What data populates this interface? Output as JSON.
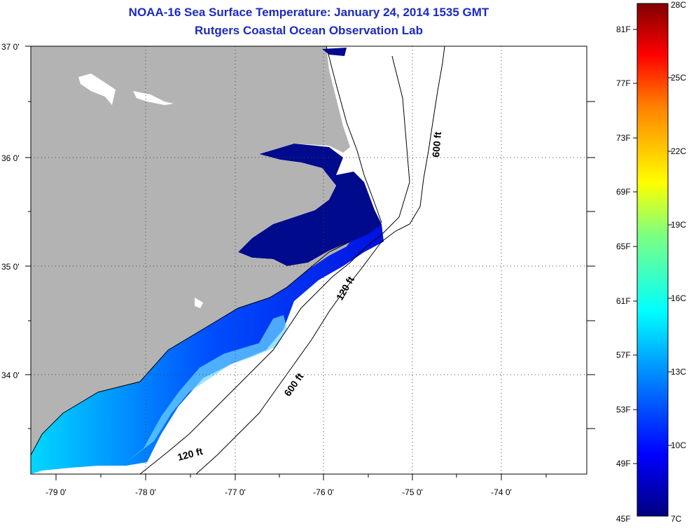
{
  "title": "NOAA-16 Sea Surface Temperature:  January 24, 2014 1535 GMT",
  "subtitle": "Rutgers Coastal Ocean Observation Lab",
  "latitude_labels": [
    "37 0'",
    "36 0'",
    "35 0'",
    "34 0'"
  ],
  "longitude_labels": [
    "-79 0'",
    "-78 0'",
    "-77 0'",
    "-76 0'",
    "-75 0'",
    "-74 0'"
  ],
  "contour_labels": {
    "shelf_break_north": "600 ft",
    "shelf_break_south": "600 ft",
    "shelf_120_north": "120 ft",
    "shelf_120_south": "120 ft"
  },
  "colorbar": {
    "fahrenheit_labels": [
      "81F",
      "77F",
      "73F",
      "69F",
      "65F",
      "61F",
      "57F",
      "53F",
      "49F",
      "45F"
    ],
    "celsius_labels": [
      "28C",
      "25C",
      "22C",
      "19C",
      "16C",
      "13C",
      "10C",
      "7C"
    ],
    "min_f": 45,
    "max_c": 28,
    "colors": [
      "#000080",
      "#0000ff",
      "#00a0ff",
      "#00ffff",
      "#7fff7f",
      "#ffff00",
      "#ff8000",
      "#ff0000",
      "#800000"
    ]
  },
  "colors": {
    "land": "#b3b3b3",
    "cold_water": "#000a8c",
    "title": "#1a2bbf"
  }
}
